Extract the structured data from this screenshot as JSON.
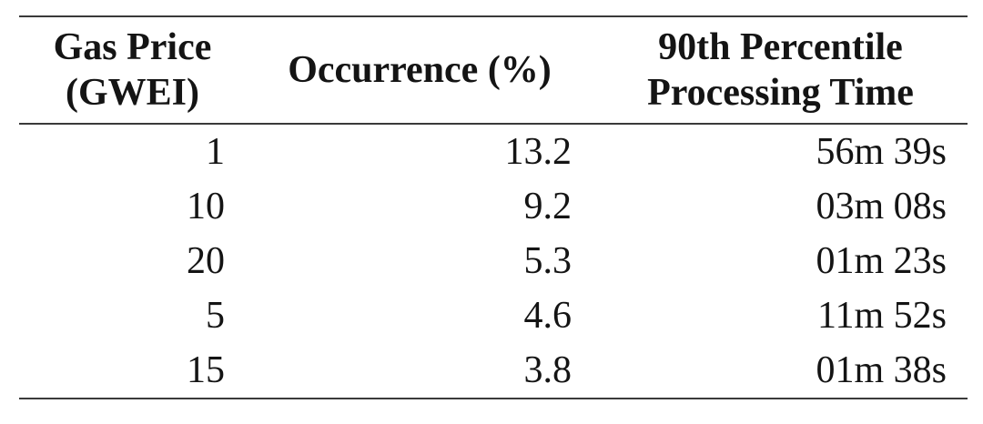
{
  "table": {
    "columns": [
      {
        "line1": "Gas Price",
        "line2": "(GWEI)"
      },
      {
        "line1": "Occurrence (%)"
      },
      {
        "line1": "90th Percentile",
        "line2": "Processing Time"
      }
    ],
    "rows": [
      [
        "1",
        "13.2",
        "56m 39s"
      ],
      [
        "10",
        "9.2",
        "03m 08s"
      ],
      [
        "20",
        "5.3",
        "01m 23s"
      ],
      [
        "5",
        "4.6",
        "11m 52s"
      ],
      [
        "15",
        "3.8",
        "01m 38s"
      ]
    ]
  },
  "colors": {
    "text": "#141414",
    "rule": "#3a3a3a",
    "background": "#ffffff"
  },
  "chart_data": {
    "type": "table",
    "columns": [
      "Gas Price (GWEI)",
      "Occurrence (%)",
      "90th Percentile Processing Time"
    ],
    "rows": [
      {
        "gas_price_gwei": 1,
        "occurrence_pct": 13.2,
        "p90_processing_time": "56m 39s"
      },
      {
        "gas_price_gwei": 10,
        "occurrence_pct": 9.2,
        "p90_processing_time": "03m 08s"
      },
      {
        "gas_price_gwei": 20,
        "occurrence_pct": 5.3,
        "p90_processing_time": "01m 23s"
      },
      {
        "gas_price_gwei": 5,
        "occurrence_pct": 4.6,
        "p90_processing_time": "11m 52s"
      },
      {
        "gas_price_gwei": 15,
        "occurrence_pct": 3.8,
        "p90_processing_time": "01m 38s"
      }
    ]
  }
}
